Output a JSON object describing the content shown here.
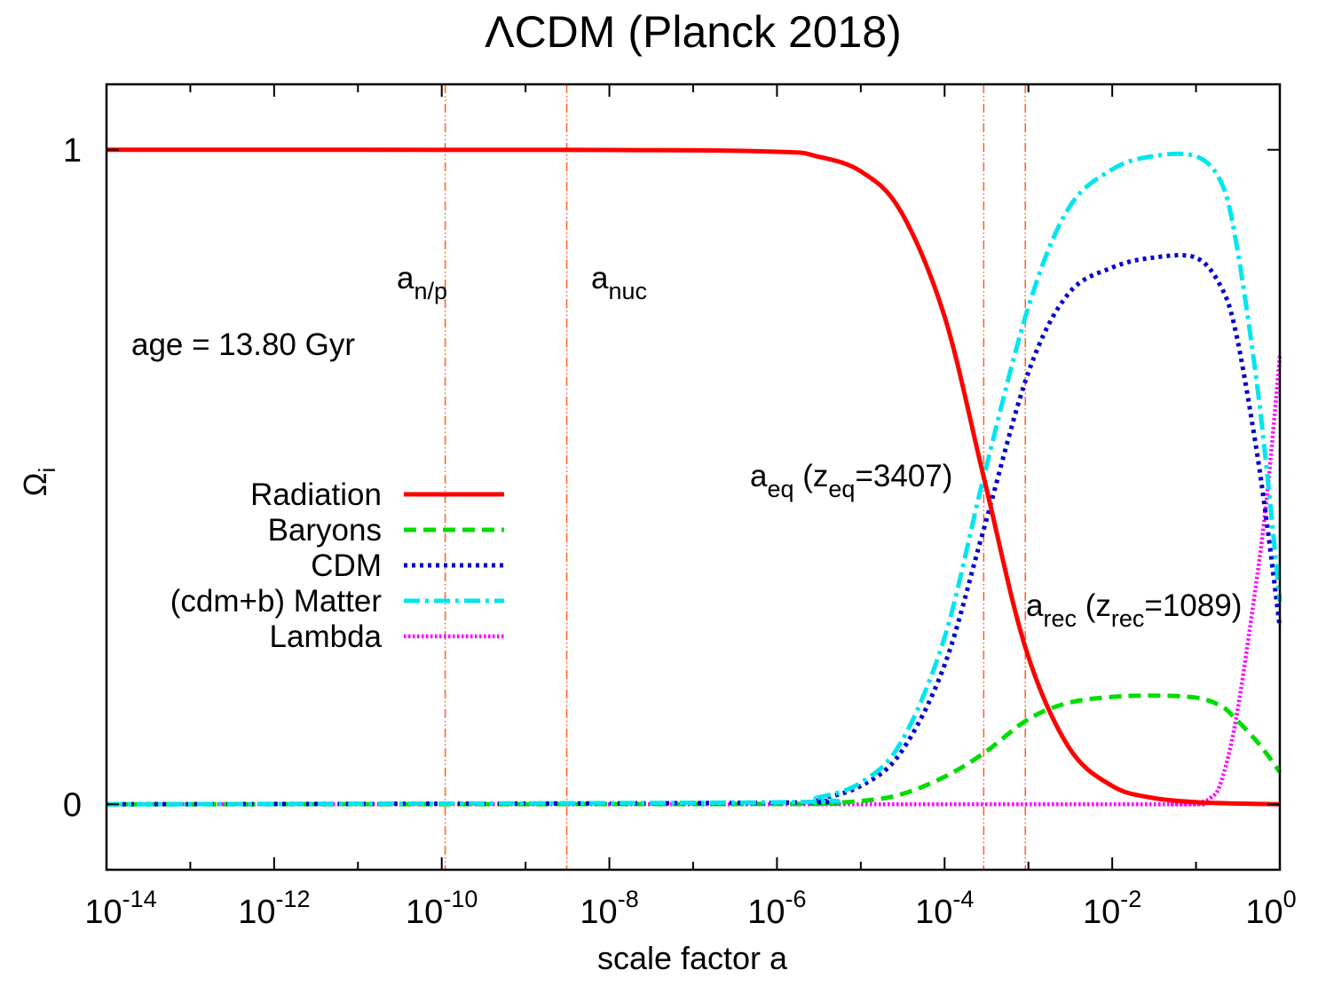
{
  "chart_data": {
    "type": "line",
    "title": "ΛCDM (Planck 2018)",
    "xlabel": "scale factor a",
    "ylabel": "Ωi",
    "ylabel_main": "Ω",
    "ylabel_sub": "i",
    "x_scale": "log",
    "xlim": [
      1e-14,
      1
    ],
    "ylim": [
      -0.1,
      1.1
    ],
    "grid": false,
    "legend_position": "middle-left",
    "x_ticks": [
      {
        "value": 1e-14,
        "base": "10",
        "exp": "-14"
      },
      {
        "value": 1e-12,
        "base": "10",
        "exp": "-12"
      },
      {
        "value": 1e-10,
        "base": "10",
        "exp": "-10"
      },
      {
        "value": 1e-08,
        "base": "10",
        "exp": "-8"
      },
      {
        "value": 1e-06,
        "base": "10",
        "exp": "-6"
      },
      {
        "value": 0.0001,
        "base": "10",
        "exp": "-4"
      },
      {
        "value": 0.01,
        "base": "10",
        "exp": "-2"
      },
      {
        "value": 1,
        "base": "10",
        "exp": "0"
      }
    ],
    "y_ticks": [
      {
        "value": 0,
        "label": "0"
      },
      {
        "value": 1,
        "label": "1"
      }
    ],
    "series": [
      {
        "name": "Radiation",
        "color": "#ff0000",
        "style": "solid",
        "x": [
          1e-14,
          1e-08,
          1e-06,
          3e-06,
          1e-05,
          3e-05,
          0.0001,
          0.000293,
          0.000918,
          0.003,
          0.01,
          0.03,
          0.1,
          0.3,
          1
        ],
        "y": [
          1,
          0.9997,
          0.997,
          0.99,
          0.967,
          0.906,
          0.745,
          0.5,
          0.24,
          0.088,
          0.028,
          0.0099,
          0.0033,
          0.0012,
          4e-05
        ]
      },
      {
        "name": "Baryons",
        "color": "#00dd00",
        "style": "dashed",
        "x": [
          1e-14,
          1e-06,
          3e-06,
          1e-05,
          3e-05,
          0.0001,
          0.000293,
          0.001,
          0.003,
          0.01,
          0.03,
          0.1,
          0.2,
          0.3,
          0.5,
          0.7,
          1
        ],
        "y": [
          0,
          0.0005,
          0.0016,
          0.005,
          0.015,
          0.042,
          0.078,
          0.13,
          0.155,
          0.164,
          0.166,
          0.163,
          0.15,
          0.13,
          0.1,
          0.077,
          0.049
        ]
      },
      {
        "name": "CDM",
        "color": "#0000cc",
        "style": "dotted",
        "x": [
          1e-14,
          1e-06,
          3e-06,
          1e-05,
          3e-05,
          0.0001,
          0.000293,
          0.001,
          0.003,
          0.01,
          0.03,
          0.1,
          0.2,
          0.3,
          0.5,
          0.7,
          1
        ],
        "y": [
          0,
          0.0025,
          0.008,
          0.028,
          0.079,
          0.213,
          0.42,
          0.66,
          0.78,
          0.82,
          0.835,
          0.835,
          0.79,
          0.72,
          0.56,
          0.43,
          0.27
        ]
      },
      {
        "name": "(cdm+b) Matter",
        "color": "#00e5ee",
        "style": "dashdot",
        "x": [
          1e-14,
          1e-06,
          3e-06,
          1e-05,
          3e-05,
          0.0001,
          0.000293,
          0.001,
          0.003,
          0.01,
          0.03,
          0.1,
          0.2,
          0.3,
          0.5,
          0.7,
          1
        ],
        "y": [
          0,
          0.003,
          0.01,
          0.033,
          0.094,
          0.255,
          0.5,
          0.76,
          0.91,
          0.97,
          0.99,
          0.99,
          0.95,
          0.86,
          0.67,
          0.51,
          0.31
        ]
      },
      {
        "name": "Lambda",
        "color": "#ff00ff",
        "style": "densedot",
        "x": [
          1e-14,
          0.01,
          0.05,
          0.1,
          0.15,
          0.2,
          0.3,
          0.5,
          0.7,
          1
        ],
        "y": [
          0,
          0,
          0.0003,
          0.002,
          0.01,
          0.035,
          0.13,
          0.32,
          0.47,
          0.685
        ]
      }
    ],
    "vlines": [
      {
        "x": 1.1e-10,
        "color": "#ff6020",
        "style": "dashdotdot"
      },
      {
        "x": 3.1e-09,
        "color": "#ff6020",
        "style": "dashdotdot"
      },
      {
        "x": 0.000293,
        "color": "#ff6020",
        "style": "dashdotdot"
      },
      {
        "x": 0.000918,
        "color": "#ff6020",
        "style": "dashdotdot"
      }
    ],
    "annotations": [
      {
        "id": "np",
        "main": "a",
        "sub": "n/p"
      },
      {
        "id": "nuc",
        "main": "a",
        "sub": "nuc"
      },
      {
        "id": "age",
        "text": "age = 13.80 Gyr"
      },
      {
        "id": "eq",
        "main": "a",
        "sub": "eq",
        "mid": " (z",
        "sub2": "eq",
        "tail": "=3407)"
      },
      {
        "id": "rec",
        "main": "a",
        "sub": "rec",
        "mid": " (z",
        "sub2": "rec",
        "tail": "=1089)"
      }
    ]
  }
}
